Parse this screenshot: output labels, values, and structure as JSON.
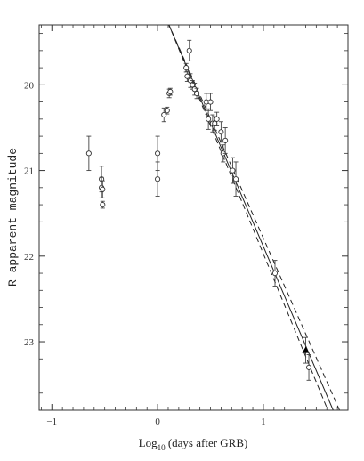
{
  "chart_data": {
    "type": "scatter",
    "title": "",
    "xlabel": "Log10 (days after GRB)",
    "xlabel_parts": {
      "base": "Log",
      "sub": "10",
      "rest": " (days after GRB)"
    },
    "ylabel": "R apparent magnitude",
    "xlim": [
      -1.12,
      1.8
    ],
    "ylim": [
      23.8,
      19.3
    ],
    "y_inverted": true,
    "grid": false,
    "x_ticks": [
      -1,
      0,
      1
    ],
    "x_tick_labels": [
      "−1",
      "0",
      "1"
    ],
    "y_ticks": [
      20,
      21,
      22,
      23
    ],
    "y_tick_labels": [
      "20",
      "21",
      "22",
      "23"
    ],
    "series": [
      {
        "marker": "open-circle",
        "points": [
          {
            "x": -0.65,
            "y": 20.8,
            "err": 0.2
          },
          {
            "x": -0.53,
            "y": 21.1,
            "err": 0.15
          },
          {
            "x": -0.53,
            "y": 21.2,
            "err": 0.12
          },
          {
            "x": -0.52,
            "y": 21.22,
            "err": 0.1
          },
          {
            "x": -0.52,
            "y": 21.4,
            "err": 0.04
          },
          {
            "x": 0.0,
            "y": 20.8,
            "err": 0.2
          },
          {
            "x": 0.0,
            "y": 21.1,
            "err": 0.2
          },
          {
            "x": 0.06,
            "y": 20.35,
            "err": 0.08
          },
          {
            "x": 0.09,
            "y": 20.3,
            "err": 0.04
          },
          {
            "x": 0.11,
            "y": 20.1,
            "err": 0.05
          },
          {
            "x": 0.12,
            "y": 20.08,
            "err": 0.04
          },
          {
            "x": 0.27,
            "y": 19.8,
            "err": 0.05
          },
          {
            "x": 0.28,
            "y": 19.9,
            "err": 0.06
          },
          {
            "x": 0.3,
            "y": 19.6,
            "err": 0.12
          },
          {
            "x": 0.31,
            "y": 19.95,
            "err": 0.08
          },
          {
            "x": 0.33,
            "y": 20.0,
            "err": 0.05
          },
          {
            "x": 0.35,
            "y": 20.05,
            "err": 0.07
          },
          {
            "x": 0.37,
            "y": 20.1,
            "err": 0.06
          },
          {
            "x": 0.46,
            "y": 20.2,
            "err": 0.1
          },
          {
            "x": 0.48,
            "y": 20.4,
            "err": 0.12
          },
          {
            "x": 0.5,
            "y": 20.2,
            "err": 0.1
          },
          {
            "x": 0.52,
            "y": 20.45,
            "err": 0.1
          },
          {
            "x": 0.54,
            "y": 20.45,
            "err": 0.08
          },
          {
            "x": 0.56,
            "y": 20.4,
            "err": 0.08
          },
          {
            "x": 0.6,
            "y": 20.55,
            "err": 0.12
          },
          {
            "x": 0.62,
            "y": 20.8,
            "err": 0.1
          },
          {
            "x": 0.64,
            "y": 20.65,
            "err": 0.15
          },
          {
            "x": 0.71,
            "y": 21.0,
            "err": 0.15
          },
          {
            "x": 0.74,
            "y": 21.1,
            "err": 0.2
          },
          {
            "x": 1.11,
            "y": 22.2,
            "err": 0.15
          },
          {
            "x": 1.43,
            "y": 23.3,
            "err": 0.15
          }
        ]
      },
      {
        "marker": "filled-triangle",
        "points": [
          {
            "x": 1.4,
            "y": 23.1,
            "err": 0.15
          }
        ]
      }
    ],
    "fit_lines": [
      {
        "style": "solid",
        "points": [
          [
            0.1,
            19.28
          ],
          [
            1.66,
            23.8
          ]
        ]
      },
      {
        "style": "dashed",
        "points": [
          [
            0.1,
            19.28
          ],
          [
            1.61,
            23.8
          ]
        ]
      },
      {
        "style": "dashed",
        "points": [
          [
            0.1,
            19.28
          ],
          [
            1.72,
            23.8
          ]
        ]
      }
    ]
  }
}
